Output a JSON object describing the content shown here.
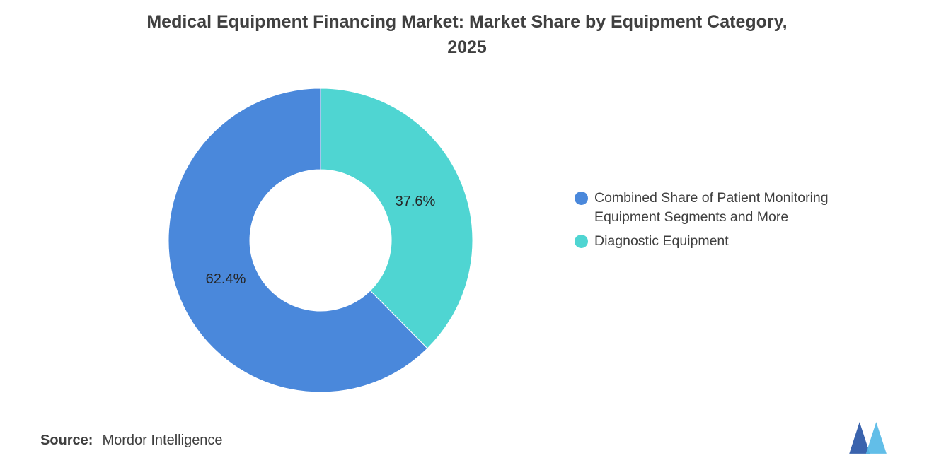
{
  "title": {
    "line1": "Medical Equipment Financing Market: Market Share by Equipment Category,",
    "line2": "2025"
  },
  "chart_data": {
    "type": "pie",
    "subtype": "donut",
    "title": "Medical Equipment Financing Market: Market Share by Equipment Category, 2025",
    "inner_radius_ratio": 0.465,
    "start_angle": "top",
    "legend_position": "right",
    "value_label_color": "#262626",
    "slices": [
      {
        "label": "Combined Share of Patient Monitoring Equipment Segments and More",
        "value": 62.4,
        "value_label": "62.4%",
        "color": "#4A88DB"
      },
      {
        "label": "Diagnostic Equipment",
        "value": 37.6,
        "value_label": "37.6%",
        "color": "#4FD5D2"
      }
    ]
  },
  "source": {
    "prefix": "Source:",
    "text": "Mordor Intelligence"
  },
  "logo": {
    "name": "mordor-intelligence-logo",
    "color_left": "#3A63AD",
    "color_right": "#55B8E6"
  }
}
